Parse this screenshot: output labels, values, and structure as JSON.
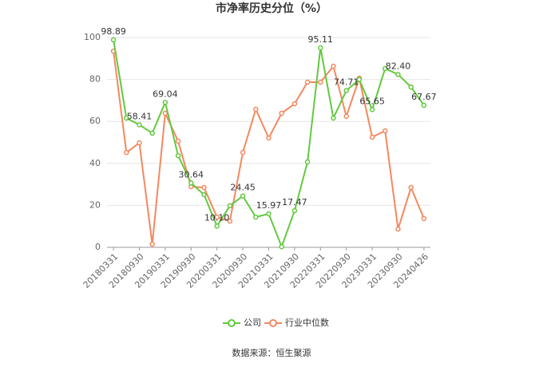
{
  "chart_data": {
    "type": "line",
    "title": "市净率历史分位（%）",
    "categories": [
      "20180331",
      null,
      "20180930",
      null,
      "20190331",
      null,
      "20190930",
      null,
      "20200331",
      null,
      "20200930",
      null,
      "20210331",
      null,
      "20210930",
      null,
      "20220331",
      null,
      "20220930",
      null,
      "20230331",
      null,
      "20230930",
      null,
      "20240426"
    ],
    "series": [
      {
        "name": "公司",
        "color": "#63c93f",
        "values": [
          98.89,
          61.6,
          58.41,
          54.4,
          69.04,
          43.7,
          30.64,
          25.1,
          10.1,
          19.8,
          24.45,
          14.4,
          15.97,
          0.3,
          17.47,
          40.7,
          95.11,
          61.6,
          74.71,
          80.0,
          65.65,
          85.2,
          82.4,
          76.4,
          67.67
        ],
        "value_labels": [
          "98.89",
          null,
          "58.41",
          null,
          "69.04",
          null,
          "30.64",
          null,
          "10.10",
          null,
          "24.45",
          null,
          "15.97",
          null,
          "17.47",
          null,
          "95.11",
          null,
          "74.71",
          null,
          "65.65",
          null,
          "82.40",
          null,
          "67.67"
        ]
      },
      {
        "name": "行业中位数",
        "color": "#f4885f",
        "values": [
          93.5,
          45.2,
          49.8,
          1.5,
          63.9,
          50.6,
          28.9,
          28.5,
          14.4,
          12.5,
          45.2,
          65.8,
          52.1,
          63.9,
          68.4,
          78.7,
          78.7,
          86.3,
          62.4,
          80.6,
          52.5,
          55.5,
          8.7,
          28.5,
          13.7
        ]
      }
    ],
    "ylim": [
      0,
      100
    ],
    "yticks": [
      0,
      20,
      40,
      60,
      80,
      100
    ],
    "grid": true,
    "source": "数据来源：恒生聚源"
  }
}
